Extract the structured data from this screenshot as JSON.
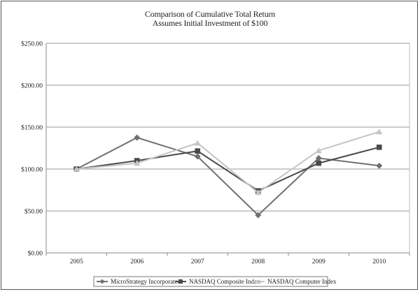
{
  "chart_data": {
    "type": "line",
    "title": "Comparison of Cumulative Total Return",
    "subtitle": "Assumes Initial Investment of $100",
    "xlabel": "",
    "ylabel": "",
    "categories": [
      "2005",
      "2006",
      "2007",
      "2008",
      "2009",
      "2010"
    ],
    "ylim": [
      0,
      250
    ],
    "yticks": [
      "$0.00",
      "$50.00",
      "$100.00",
      "$150.00",
      "$200.00",
      "$250.00"
    ],
    "grid": true,
    "legend_position": "bottom",
    "series": [
      {
        "name": "MicroStrategy Incorporated",
        "marker": "diamond",
        "color": "#707070",
        "values": [
          100,
          137.5,
          115,
          45,
          113,
          104
        ]
      },
      {
        "name": "NASDAQ Composite Index",
        "marker": "square",
        "color": "#4a4a4a",
        "values": [
          100,
          110,
          121.5,
          74,
          107,
          126
        ]
      },
      {
        "name": "NASDAQ Computer Index",
        "marker": "triangle",
        "color": "#c4c4c4",
        "values": [
          100,
          107,
          131,
          72,
          122,
          144.5
        ]
      }
    ]
  }
}
